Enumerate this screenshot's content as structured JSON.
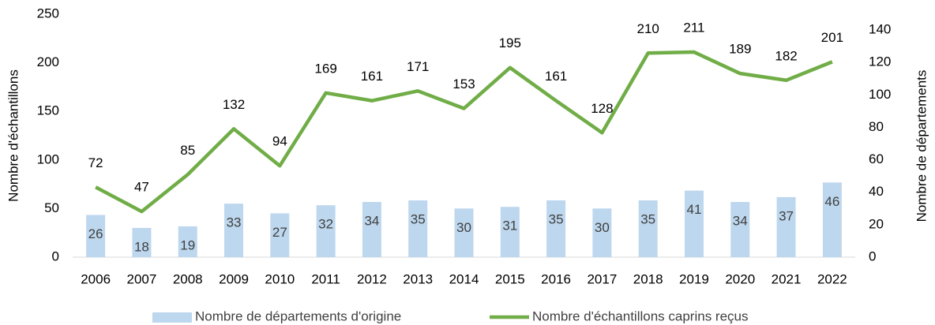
{
  "chart_data": {
    "type": "combo",
    "categories": [
      "2006",
      "2007",
      "2008",
      "2009",
      "2010",
      "2011",
      "2012",
      "2013",
      "2014",
      "2015",
      "2016",
      "2017",
      "2018",
      "2019",
      "2020",
      "2021",
      "2022"
    ],
    "series": [
      {
        "name": "Nombre de départements d'origine",
        "type": "bar",
        "axis": "y2",
        "color": "#bdd7ee",
        "values": [
          26,
          18,
          19,
          33,
          27,
          32,
          34,
          35,
          30,
          31,
          35,
          30,
          35,
          41,
          34,
          37,
          46
        ]
      },
      {
        "name": "Nombre d'échantillons caprins reçus",
        "type": "line",
        "color": "#70ad47",
        "values": [
          72,
          47,
          85,
          132,
          94,
          169,
          161,
          171,
          153,
          195,
          161,
          128,
          210,
          211,
          189,
          182,
          201
        ]
      }
    ],
    "ylabel": "Nombre d'échantillons",
    "y2label": "Nombre de départements",
    "ylim": [
      0,
      250
    ],
    "yticks": [
      0,
      50,
      100,
      150,
      200,
      250
    ],
    "y2lim": [
      0,
      140
    ],
    "y2ticks": [
      0,
      20,
      40,
      60,
      80,
      100,
      120,
      140
    ],
    "legend": "bottom"
  }
}
